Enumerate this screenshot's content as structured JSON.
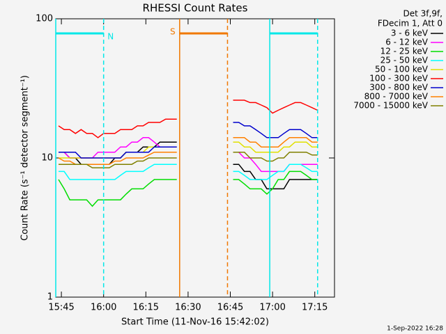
{
  "chart_data": {
    "type": "line",
    "title": "RHESSI Count Rates",
    "xlabel": "Start Time (11-Nov-16 15:42:02)",
    "ylabel": "Count Rate (s⁻¹ detector segment⁻¹)",
    "legend_header": [
      "Det 3f,9f,",
      "FDecim 1, Att 0"
    ],
    "footer": "1-Sep-2022 16:28",
    "log_y": true,
    "xlim": [
      "15:43",
      "17:22"
    ],
    "xticks": [
      "15:45",
      "16:00",
      "16:15",
      "16:30",
      "16:45",
      "17:00",
      "17:15"
    ],
    "ylim": [
      1,
      100
    ],
    "yticks": [
      1,
      10,
      100
    ],
    "intervals": [
      {
        "label": "N",
        "start": "15:43",
        "end": "16:00",
        "color": "#00e8e8"
      },
      {
        "label": "S",
        "start": "16:27",
        "end": "16:44",
        "color": "#f07800"
      },
      {
        "start": "16:59",
        "end": "17:16",
        "color": "#00e8e8"
      }
    ],
    "x": [
      "15:44",
      "15:46",
      "15:48",
      "15:50",
      "15:52",
      "15:54",
      "15:56",
      "15:58",
      "16:00",
      "16:02",
      "16:04",
      "16:06",
      "16:08",
      "16:10",
      "16:12",
      "16:14",
      "16:16",
      "16:18",
      "16:20",
      "16:22",
      "16:24",
      "16:26",
      "16:36",
      "16:46",
      "16:48",
      "16:50",
      "16:52",
      "16:54",
      "16:56",
      "16:58",
      "17:00",
      "17:02",
      "17:04",
      "17:06",
      "17:08",
      "17:10",
      "17:12",
      "17:14",
      "17:16"
    ],
    "series": [
      {
        "name": "3 - 6 keV",
        "color": "#000000",
        "values": [
          11,
          11,
          10,
          10,
          9,
          9,
          9,
          9,
          9,
          9,
          10,
          10,
          11,
          11,
          11,
          12,
          12,
          12,
          13,
          13,
          13,
          13,
          null,
          9,
          9,
          8,
          8,
          7,
          7,
          6,
          6,
          6,
          6,
          7,
          7,
          7,
          7,
          7,
          7
        ]
      },
      {
        "name": "6 - 12 keV",
        "color": "#ff00ff",
        "values": [
          11,
          11,
          10,
          10,
          10,
          10,
          10,
          11,
          11,
          11,
          11,
          12,
          12,
          13,
          13,
          14,
          14,
          13,
          12,
          12,
          12,
          12,
          null,
          11,
          11,
          10,
          10,
          9,
          8,
          8,
          8,
          8,
          8,
          9,
          9,
          9,
          9,
          9,
          9
        ]
      },
      {
        "name": "12 - 25 keV",
        "color": "#00dd00",
        "values": [
          7,
          6,
          5,
          5,
          5,
          5,
          4.5,
          5,
          5,
          5,
          5,
          5,
          5.5,
          6,
          6,
          6,
          6.5,
          7,
          7,
          7,
          7,
          7,
          null,
          7,
          7,
          6.5,
          6,
          6,
          6,
          5.5,
          6,
          7,
          7,
          8,
          8,
          8,
          7.5,
          7,
          7
        ]
      },
      {
        "name": "25 - 50 keV",
        "color": "#00ffff",
        "values": [
          8,
          8,
          7,
          7,
          7,
          7,
          7,
          7,
          7,
          7,
          7,
          7.5,
          8,
          8,
          8,
          8,
          8.5,
          9,
          9,
          9,
          9,
          9,
          null,
          8,
          8,
          7.5,
          7,
          7,
          7,
          7,
          7.5,
          8,
          8,
          9,
          9,
          9,
          8.5,
          8,
          8
        ]
      },
      {
        "name": "50 - 100 keV",
        "color": "#e0e000",
        "values": [
          10,
          10,
          10,
          10,
          10,
          10,
          10,
          10,
          10,
          10,
          10,
          10,
          11,
          11,
          11,
          11,
          12,
          12,
          12,
          12,
          12,
          12,
          null,
          13,
          13,
          12,
          12,
          11,
          11,
          11,
          11,
          11,
          12,
          12,
          13,
          13,
          13,
          12,
          12
        ]
      },
      {
        "name": "100 - 300 keV",
        "color": "#ff0000",
        "values": [
          17,
          16,
          16,
          15,
          16,
          15,
          15,
          14,
          15,
          15,
          15,
          16,
          16,
          16,
          17,
          17,
          18,
          18,
          18,
          19,
          19,
          19,
          null,
          26,
          26,
          26,
          25,
          25,
          24,
          23,
          21,
          22,
          23,
          24,
          25,
          25,
          24,
          23,
          22
        ]
      },
      {
        "name": "300 - 800 keV",
        "color": "#0000cc",
        "values": [
          11,
          11,
          11,
          11,
          10,
          10,
          10,
          10,
          10,
          10,
          10,
          10,
          11,
          11,
          11,
          11,
          11,
          12,
          12,
          12,
          12,
          12,
          null,
          18,
          18,
          17,
          17,
          16,
          15,
          14,
          14,
          14,
          15,
          16,
          16,
          16,
          15,
          14,
          14
        ]
      },
      {
        "name": "800 - 7000 keV",
        "color": "#ff8000",
        "values": [
          10,
          9.5,
          9.5,
          9,
          9,
          9,
          9,
          9,
          9,
          9,
          9.5,
          9.5,
          10,
          10,
          10,
          10,
          10.5,
          11,
          11,
          11,
          11,
          11,
          null,
          14,
          14,
          14,
          13,
          13,
          12,
          12,
          12,
          12,
          13,
          14,
          14,
          14,
          14,
          13,
          13
        ]
      },
      {
        "name": "7000 - 15000 keV",
        "color": "#808000",
        "values": [
          9,
          9,
          9,
          9,
          9,
          9,
          8.5,
          8.5,
          8.5,
          8.5,
          9,
          9,
          9,
          9,
          9.5,
          9.5,
          10,
          10,
          10,
          10,
          10,
          10,
          null,
          11,
          11,
          11,
          10,
          10,
          10,
          9.5,
          9.5,
          10,
          10,
          11,
          11,
          11,
          11,
          10.5,
          10.5
        ]
      }
    ]
  }
}
